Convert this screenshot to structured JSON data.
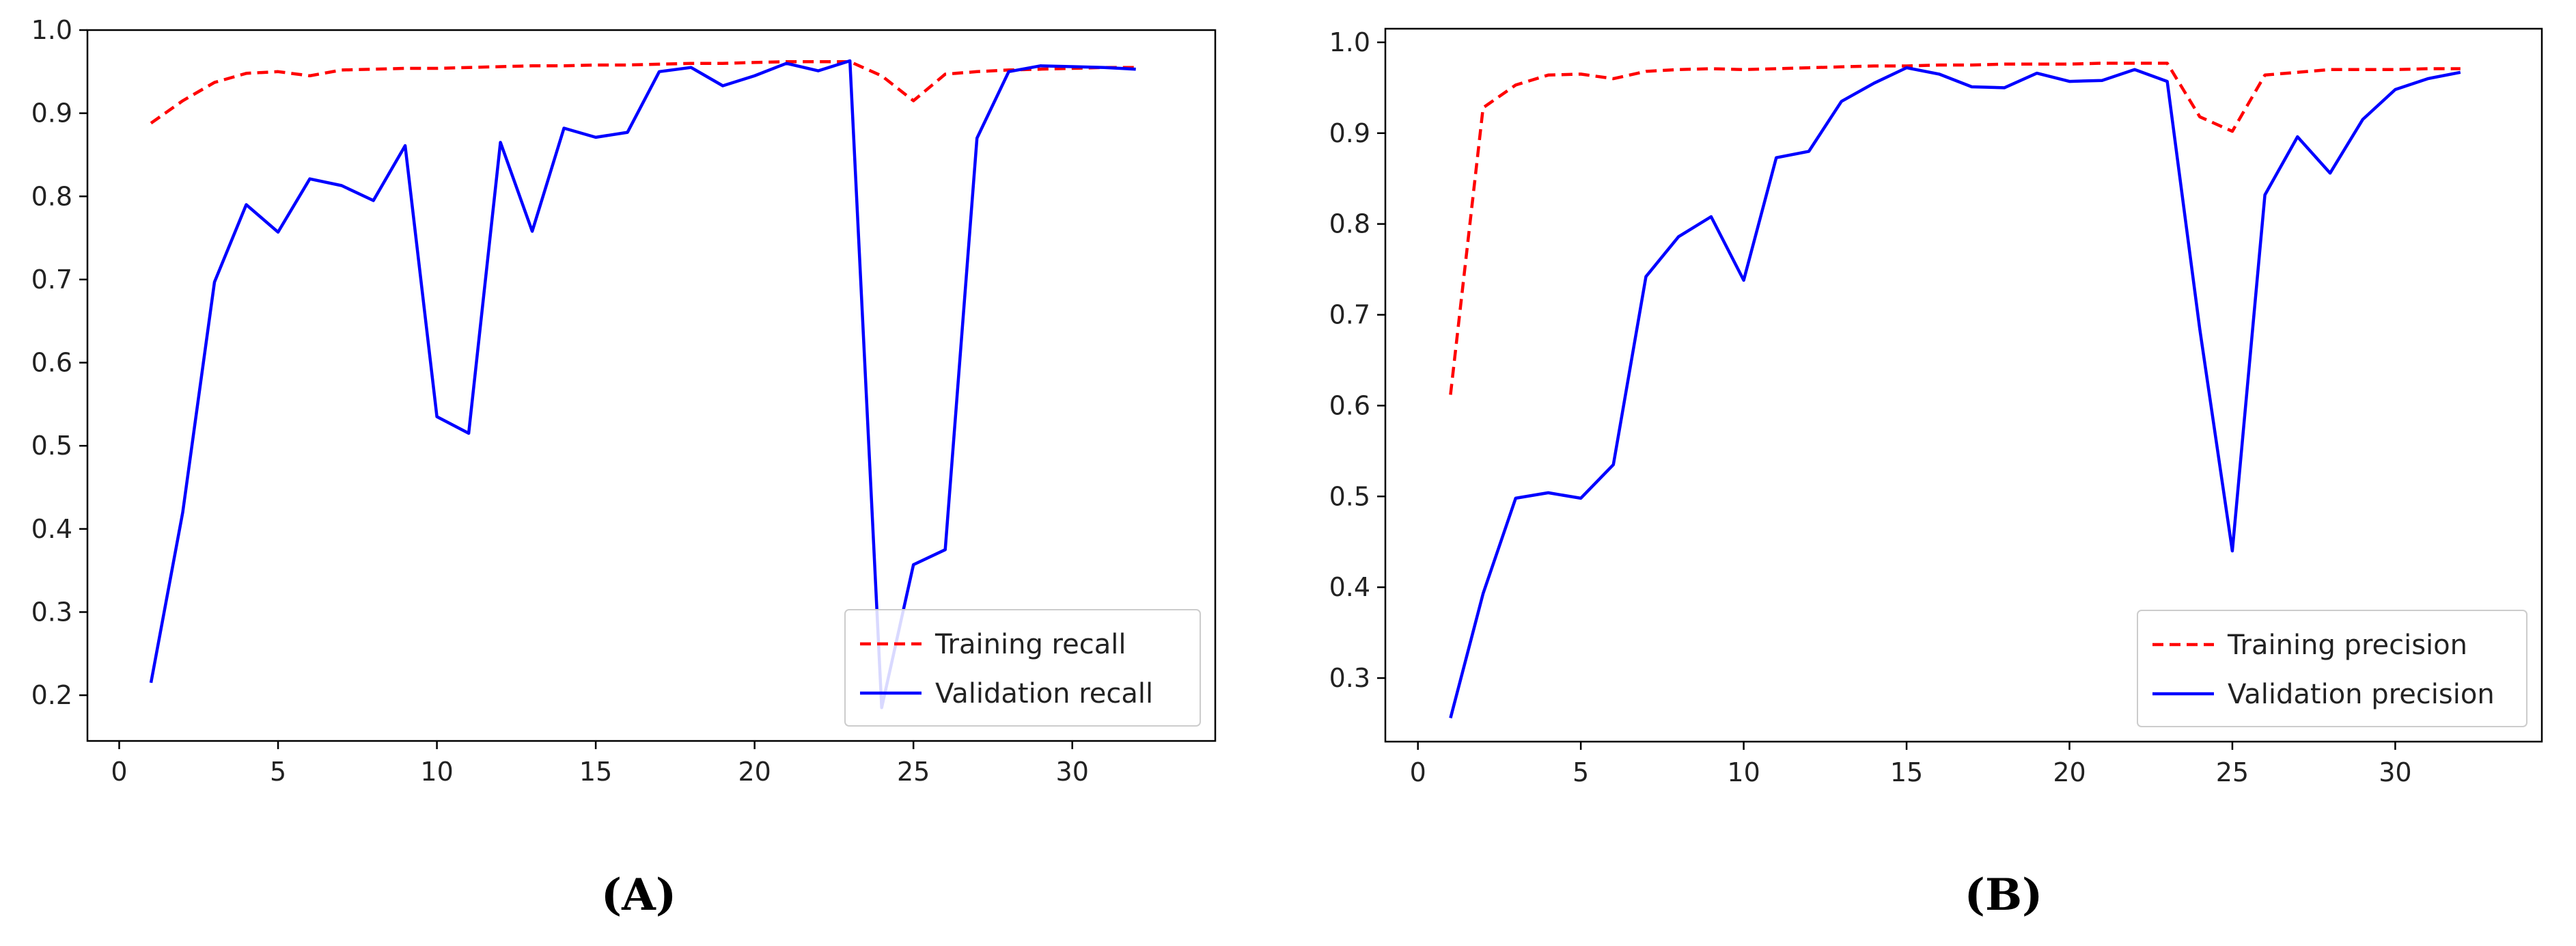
{
  "chart_data": [
    {
      "type": "line",
      "panel_label": "(A)",
      "title": "",
      "xlabel": "",
      "ylabel": "",
      "xlim": [
        -1,
        34.5
      ],
      "ylim": [
        0.145,
        1.0
      ],
      "xticks": [
        0,
        5,
        10,
        15,
        20,
        25,
        30
      ],
      "yticks": [
        0.2,
        0.3,
        0.4,
        0.5,
        0.6,
        0.7,
        0.8,
        0.9,
        1.0
      ],
      "grid": false,
      "legend_position": "bottom-right",
      "x": [
        1,
        2,
        3,
        4,
        5,
        6,
        7,
        8,
        9,
        10,
        11,
        12,
        13,
        14,
        15,
        16,
        17,
        18,
        19,
        20,
        21,
        22,
        23,
        24,
        25,
        26,
        27,
        28,
        29,
        30,
        31,
        32
      ],
      "series": [
        {
          "name": "Training recall",
          "color": "#ff0000",
          "style": "dashed",
          "values": [
            0.888,
            0.915,
            0.937,
            0.948,
            0.95,
            0.945,
            0.952,
            0.953,
            0.954,
            0.954,
            0.955,
            0.956,
            0.957,
            0.957,
            0.958,
            0.958,
            0.959,
            0.96,
            0.96,
            0.961,
            0.962,
            0.962,
            0.962,
            0.945,
            0.915,
            0.947,
            0.95,
            0.952,
            0.953,
            0.954,
            0.955,
            0.955
          ]
        },
        {
          "name": "Validation recall",
          "color": "#0000ff",
          "style": "solid",
          "values": [
            0.215,
            0.42,
            0.697,
            0.79,
            0.757,
            0.821,
            0.813,
            0.795,
            0.861,
            0.535,
            0.515,
            0.865,
            0.758,
            0.882,
            0.871,
            0.877,
            0.95,
            0.955,
            0.933,
            0.945,
            0.96,
            0.951,
            0.963,
            0.185,
            0.357,
            0.375,
            0.87,
            0.95,
            0.957,
            0.956,
            0.955,
            0.953
          ]
        }
      ]
    },
    {
      "type": "line",
      "panel_label": "(B)",
      "title": "",
      "xlabel": "",
      "ylabel": "",
      "xlim": [
        -1,
        34.5
      ],
      "ylim": [
        0.23,
        1.015
      ],
      "xticks": [
        0,
        5,
        10,
        15,
        20,
        25,
        30
      ],
      "yticks": [
        0.3,
        0.4,
        0.5,
        0.6,
        0.7,
        0.8,
        0.9,
        1.0
      ],
      "grid": false,
      "legend_position": "bottom-right",
      "x": [
        1,
        2,
        3,
        4,
        5,
        6,
        7,
        8,
        9,
        10,
        11,
        12,
        13,
        14,
        15,
        16,
        17,
        18,
        19,
        20,
        21,
        22,
        23,
        24,
        25,
        26,
        27,
        28,
        29,
        30,
        31,
        32
      ],
      "series": [
        {
          "name": "Training precision",
          "color": "#ff0000",
          "style": "dashed",
          "values": [
            0.612,
            0.928,
            0.953,
            0.964,
            0.965,
            0.96,
            0.968,
            0.97,
            0.971,
            0.97,
            0.971,
            0.972,
            0.973,
            0.974,
            0.974,
            0.975,
            0.975,
            0.976,
            0.976,
            0.976,
            0.977,
            0.977,
            0.977,
            0.918,
            0.902,
            0.964,
            0.967,
            0.97,
            0.97,
            0.97,
            0.971,
            0.971
          ]
        },
        {
          "name": "Validation precision",
          "color": "#0000ff",
          "style": "solid",
          "values": [
            0.256,
            0.393,
            0.498,
            0.504,
            0.498,
            0.535,
            0.742,
            0.786,
            0.808,
            0.738,
            0.873,
            0.88,
            0.935,
            0.955,
            0.972,
            0.965,
            0.951,
            0.95,
            0.966,
            0.957,
            0.958,
            0.97,
            0.957,
            0.684,
            0.44,
            0.832,
            0.896,
            0.856,
            0.915,
            0.948,
            0.96,
            0.967
          ]
        }
      ]
    }
  ]
}
